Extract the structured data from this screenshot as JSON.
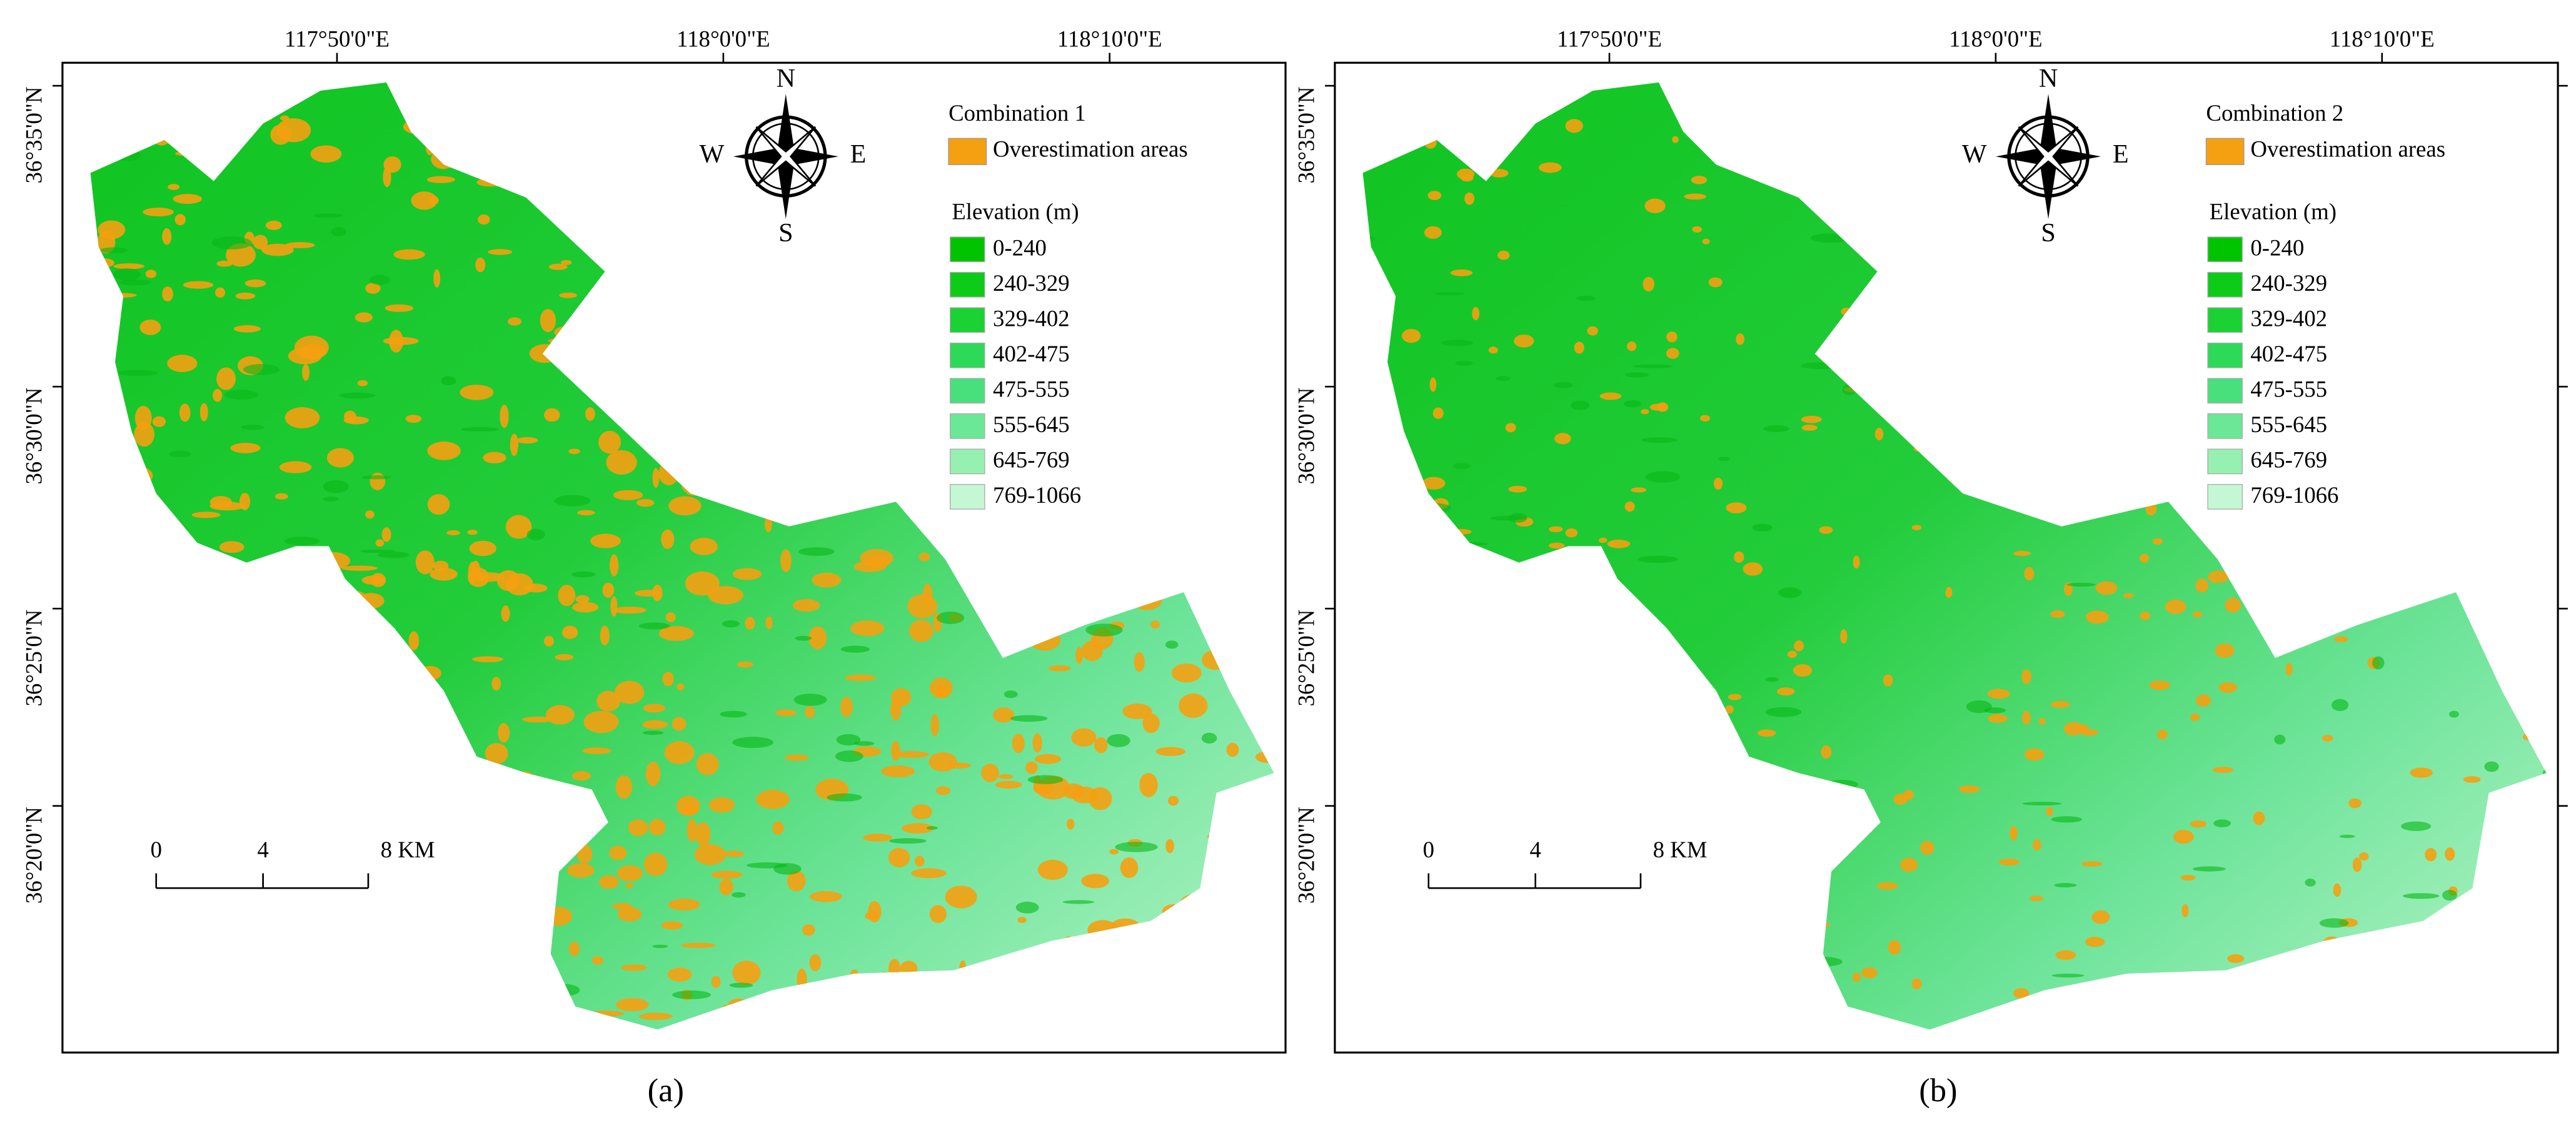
{
  "panels": [
    {
      "caption": "(a)",
      "legend_title": "Combination 1",
      "overestimation_label": "Overestimation areas",
      "overestimation_color": "#f5a011",
      "elevation_title": "Elevation (m)",
      "elevation_classes": [
        {
          "label": "0-240",
          "color": "#00c400"
        },
        {
          "label": "240-329",
          "color": "#0ccc18"
        },
        {
          "label": "329-402",
          "color": "#1ad234"
        },
        {
          "label": "402-475",
          "color": "#2cda58"
        },
        {
          "label": "475-555",
          "color": "#48e07c"
        },
        {
          "label": "555-645",
          "color": "#6ae896"
        },
        {
          "label": "645-769",
          "color": "#96f0b0"
        },
        {
          "label": "769-1066",
          "color": "#c4f8d4"
        }
      ],
      "longitude_labels": [
        "117°50'0\"E",
        "118°0'0\"E",
        "118°10'0\"E"
      ],
      "latitude_labels": [
        "36°35'0\"N",
        "36°30'0\"N",
        "36°25'0\"N",
        "36°20'0\"N"
      ],
      "compass": {
        "n": "N",
        "s": "S",
        "e": "E",
        "w": "W"
      },
      "scale_bar": [
        "0",
        "4",
        "8 KM"
      ]
    },
    {
      "caption": "(b)",
      "legend_title": "Combination 2",
      "overestimation_label": "Overestimation areas",
      "overestimation_color": "#f5a011",
      "elevation_title": "Elevation (m)",
      "elevation_classes": [
        {
          "label": "0-240",
          "color": "#00c400"
        },
        {
          "label": "240-329",
          "color": "#0ccc18"
        },
        {
          "label": "329-402",
          "color": "#1ad234"
        },
        {
          "label": "402-475",
          "color": "#2cda58"
        },
        {
          "label": "475-555",
          "color": "#48e07c"
        },
        {
          "label": "555-645",
          "color": "#6ae896"
        },
        {
          "label": "645-769",
          "color": "#96f0b0"
        },
        {
          "label": "769-1066",
          "color": "#c4f8d4"
        }
      ],
      "longitude_labels": [
        "117°50'0\"E",
        "118°0'0\"E",
        "118°10'0\"E"
      ],
      "latitude_labels": [
        "36°35'0\"N",
        "36°30'0\"N",
        "36°25'0\"N",
        "36°20'0\"N"
      ],
      "compass": {
        "n": "N",
        "s": "S",
        "e": "E",
        "w": "W"
      },
      "scale_bar": [
        "0",
        "4",
        "8 KM"
      ]
    }
  ]
}
